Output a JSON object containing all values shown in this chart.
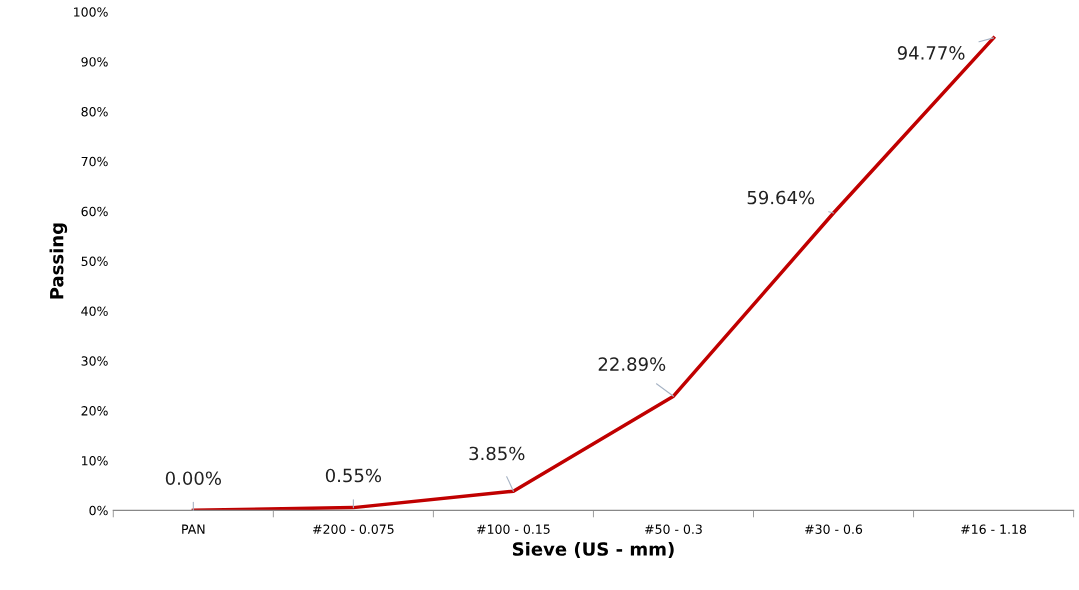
{
  "chart_data": {
    "type": "line",
    "xlabel": "Sieve (US - mm)",
    "ylabel": "Passing",
    "categories": [
      "PAN",
      "#200 - 0.075",
      "#100 - 0.15",
      "#50 - 0.3",
      "#30 - 0.6",
      "#16 - 1.18"
    ],
    "series": [
      {
        "color": "#c00000",
        "values": [
          0.0,
          0.55,
          3.85,
          22.89,
          59.64,
          94.77
        ],
        "value_labels": [
          "0.00%",
          "0.55%",
          "3.85%",
          "22.89%",
          "59.64%",
          "94.77%"
        ]
      }
    ],
    "ylim": [
      0,
      100
    ],
    "yticks": [
      {
        "value": 0,
        "label": "0%"
      },
      {
        "value": 10,
        "label": "10%"
      },
      {
        "value": 20,
        "label": "20%"
      },
      {
        "value": 30,
        "label": "30%"
      },
      {
        "value": 40,
        "label": "40%"
      },
      {
        "value": 50,
        "label": "50%"
      },
      {
        "value": 60,
        "label": "60%"
      },
      {
        "value": 70,
        "label": "70%"
      },
      {
        "value": 80,
        "label": "80%"
      },
      {
        "value": 90,
        "label": "90%"
      },
      {
        "value": 100,
        "label": "100%"
      }
    ],
    "grid": false,
    "legend": false,
    "marker": "none",
    "line_style": "solid"
  }
}
